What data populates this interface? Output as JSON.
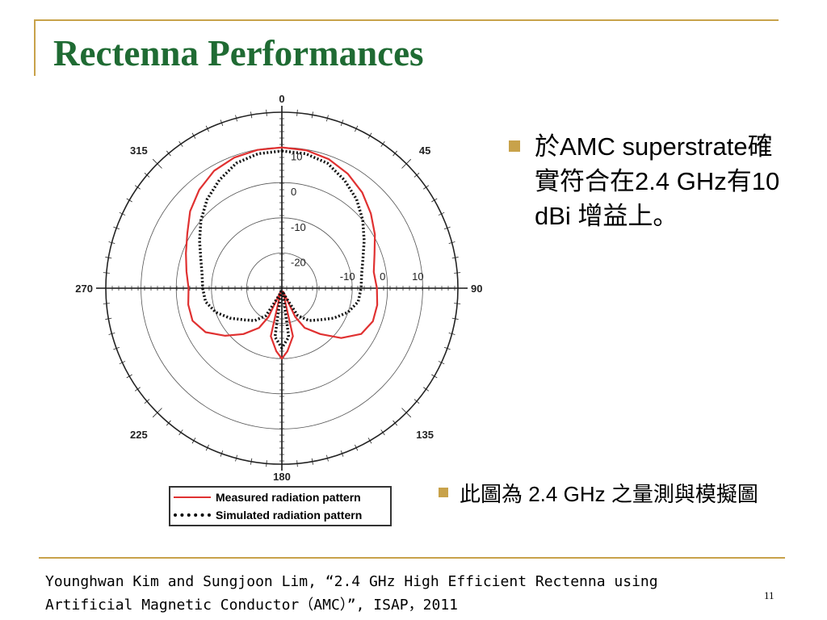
{
  "slide": {
    "title": "Rectenna Performances",
    "bullets": [
      "於AMC superstrate確實符合在2.4 GHz有10 dBi 增益上。",
      "此圖為 2.4 GHz 之量測與模擬圖"
    ],
    "citation_line1": "Younghwan Kim and Sungjoon Lim, “2.4 GHz High Efficient Rectenna using",
    "citation_line2": "Artificial Magnetic Conductor（AMC）”, ISAP，2011",
    "page_number": "11",
    "accent_color": "#c8a24a",
    "title_color": "#1f6b33"
  },
  "chart_data": {
    "type": "polar_line",
    "angular_unit": "degrees",
    "angle_zero_direction": "top",
    "angle_direction": "clockwise",
    "angle_ticks": [
      "0",
      "45",
      "90",
      "135",
      "180",
      "225",
      "270",
      "315"
    ],
    "radial_range": [
      -30,
      20
    ],
    "radial_ticks": [
      "-20",
      "-10",
      "0",
      "10"
    ],
    "grid": true,
    "legend_position": "bottom",
    "series": [
      {
        "name": "Measured radiation pattern",
        "color": "#e03131",
        "style": "solid",
        "points": [
          [
            0,
            10
          ],
          [
            10,
            9.8
          ],
          [
            20,
            9
          ],
          [
            30,
            7.5
          ],
          [
            40,
            5.5
          ],
          [
            50,
            3
          ],
          [
            60,
            0.5
          ],
          [
            70,
            -2
          ],
          [
            80,
            -3.5
          ],
          [
            90,
            -3
          ],
          [
            100,
            -2.5
          ],
          [
            110,
            -2.5
          ],
          [
            120,
            -4
          ],
          [
            130,
            -8
          ],
          [
            140,
            -13
          ],
          [
            150,
            -17
          ],
          [
            155,
            -21
          ],
          [
            160,
            -29
          ],
          [
            163,
            -29
          ],
          [
            167,
            -16
          ],
          [
            175,
            -12
          ],
          [
            180,
            -10
          ],
          [
            185,
            -12
          ],
          [
            193,
            -16
          ],
          [
            197,
            -29
          ],
          [
            200,
            -29
          ],
          [
            205,
            -21
          ],
          [
            210,
            -17
          ],
          [
            220,
            -13
          ],
          [
            230,
            -9
          ],
          [
            240,
            -5
          ],
          [
            250,
            -3
          ],
          [
            260,
            -3
          ],
          [
            270,
            -3.5
          ],
          [
            280,
            -2.5
          ],
          [
            290,
            -1
          ],
          [
            300,
            1
          ],
          [
            310,
            4
          ],
          [
            320,
            6.5
          ],
          [
            330,
            8.5
          ],
          [
            340,
            9.5
          ],
          [
            350,
            9.9
          ],
          [
            360,
            10
          ]
        ]
      },
      {
        "name": "Simulated radiation pattern",
        "color": "#111111",
        "style": "dotted",
        "points": [
          [
            0,
            9
          ],
          [
            10,
            8.8
          ],
          [
            20,
            7.8
          ],
          [
            30,
            5.5
          ],
          [
            40,
            3
          ],
          [
            50,
            0
          ],
          [
            60,
            -3
          ],
          [
            70,
            -5.5
          ],
          [
            80,
            -7
          ],
          [
            90,
            -7.5
          ],
          [
            100,
            -8
          ],
          [
            110,
            -10
          ],
          [
            120,
            -13
          ],
          [
            130,
            -16
          ],
          [
            140,
            -18
          ],
          [
            150,
            -21
          ],
          [
            160,
            -28
          ],
          [
            163,
            -29
          ],
          [
            167,
            -29
          ],
          [
            172,
            -16
          ],
          [
            180,
            -13
          ],
          [
            188,
            -16
          ],
          [
            193,
            -29
          ],
          [
            197,
            -29
          ],
          [
            200,
            -28
          ],
          [
            210,
            -21
          ],
          [
            220,
            -18
          ],
          [
            230,
            -16
          ],
          [
            240,
            -13
          ],
          [
            250,
            -10
          ],
          [
            260,
            -8
          ],
          [
            270,
            -7.5
          ],
          [
            280,
            -7
          ],
          [
            290,
            -5.5
          ],
          [
            300,
            -3
          ],
          [
            310,
            0
          ],
          [
            320,
            3
          ],
          [
            330,
            5.5
          ],
          [
            340,
            7.8
          ],
          [
            350,
            8.8
          ],
          [
            360,
            9
          ]
        ]
      }
    ]
  }
}
